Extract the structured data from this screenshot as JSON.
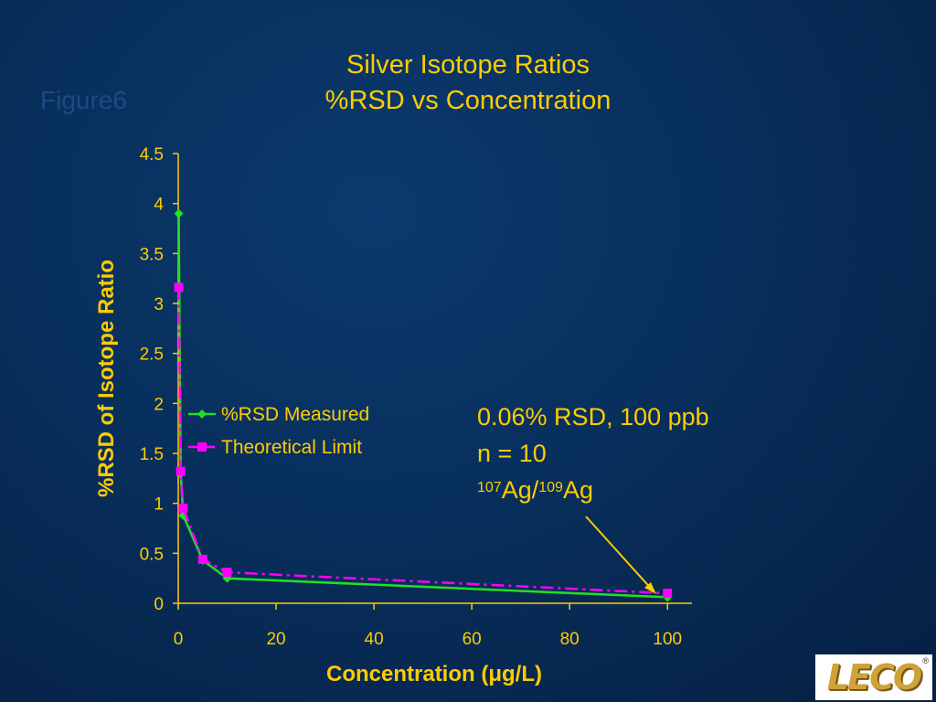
{
  "figure_label": "Figure6",
  "logo": {
    "text": "LECO",
    "mark": "®"
  },
  "annotation": {
    "line1": "0.06% RSD, 100 ppb",
    "line2": "n = 10",
    "isotope_a_mass": "107",
    "isotope_a": "Ag/",
    "isotope_b_mass": "109",
    "isotope_b": "Ag"
  },
  "chart_data": {
    "type": "line",
    "title": "Silver Isotope Ratios",
    "subtitle": "%RSD vs Concentration",
    "xlabel_prefix": "Concentration (",
    "xlabel_micro": "μ",
    "xlabel_suffix": "g/L)",
    "ylabel": "%RSD of Isotope Ratio",
    "xlim": [
      0,
      105
    ],
    "ylim": [
      0,
      4.5
    ],
    "xticks": [
      0,
      20,
      40,
      60,
      80,
      100
    ],
    "yticks": [
      0,
      0.5,
      1,
      1.5,
      2,
      2.5,
      3,
      3.5,
      4,
      4.5
    ],
    "grid": false,
    "legend_position": "center-left",
    "series": [
      {
        "name": "%RSD Measured",
        "color": "#22e022",
        "marker": "diamond",
        "line_style": "solid",
        "x": [
          0.1,
          0.5,
          1,
          5,
          10,
          100
        ],
        "y": [
          3.9,
          1.3,
          0.88,
          0.43,
          0.25,
          0.06
        ]
      },
      {
        "name": "Theoretical Limit",
        "color": "#ff00ff",
        "marker": "square",
        "line_style": "dashdot",
        "x": [
          0.1,
          0.5,
          1,
          5,
          10,
          100
        ],
        "y": [
          3.16,
          1.32,
          0.95,
          0.44,
          0.31,
          0.1
        ]
      }
    ]
  }
}
